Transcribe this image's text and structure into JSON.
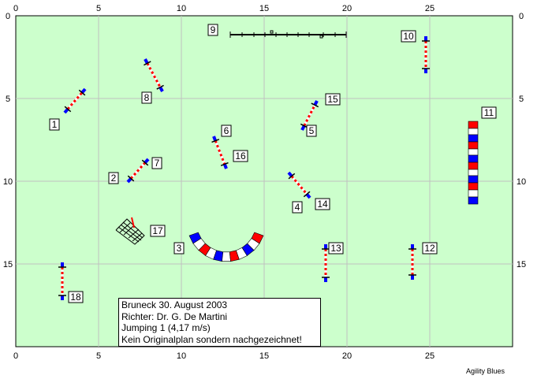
{
  "course": {
    "axis_ticks": [
      "0",
      "5",
      "10",
      "15"
    ],
    "x_axis_ticks": [
      "0",
      "5",
      "10",
      "15",
      "20",
      "25"
    ],
    "colors": {
      "field": "#ccffcc",
      "grid": "#c0c0c0",
      "pole_red": "#ff0000",
      "pole_blue": "#0000ff",
      "pole_white": "#ffffff"
    },
    "obstacles": [
      {
        "number": "1",
        "type": "jump"
      },
      {
        "number": "2",
        "type": "jump"
      },
      {
        "number": "3",
        "type": "tunnel"
      },
      {
        "number": "4",
        "type": "jump"
      },
      {
        "number": "5",
        "type": "jump"
      },
      {
        "number": "6",
        "type": "jump"
      },
      {
        "number": "7",
        "type": "jump"
      },
      {
        "number": "8",
        "type": "jump"
      },
      {
        "number": "9",
        "type": "dog-walk"
      },
      {
        "number": "10",
        "type": "jump"
      },
      {
        "number": "11",
        "type": "tunnel"
      },
      {
        "number": "12",
        "type": "jump"
      },
      {
        "number": "13",
        "type": "jump"
      },
      {
        "number": "14",
        "type": "jump"
      },
      {
        "number": "15",
        "type": "jump"
      },
      {
        "number": "16",
        "type": "jump"
      },
      {
        "number": "17",
        "type": "long-jump"
      },
      {
        "number": "18",
        "type": "jump"
      }
    ]
  },
  "info": {
    "line1": "Bruneck 30. August 2003",
    "line2": "Richter: Dr. G. De Martini",
    "line3": "Jumping 1 (4,17 m/s)",
    "line4": "Kein Originalplan sondern nachgezeichnet!"
  },
  "credit": "Agility Blues"
}
